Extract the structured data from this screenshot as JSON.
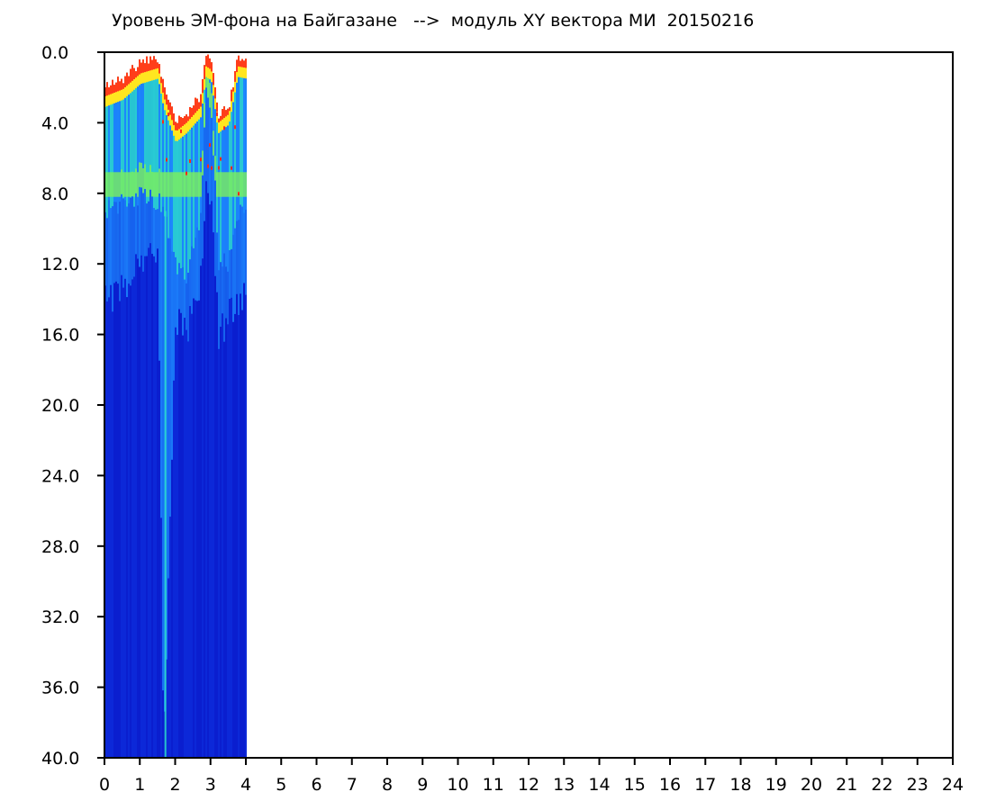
{
  "chart_data": {
    "type": "heatmap",
    "title": "Уровень ЭМ-фона на Байгазане   -->  модуль XY вектора МИ  20150216",
    "xlabel": "",
    "ylabel": "",
    "xlim": [
      0,
      24
    ],
    "ylim": [
      40,
      0
    ],
    "x_ticks": [
      "0",
      "1",
      "2",
      "3",
      "4",
      "5",
      "6",
      "7",
      "8",
      "9",
      "10",
      "11",
      "12",
      "13",
      "14",
      "15",
      "16",
      "17",
      "18",
      "19",
      "20",
      "21",
      "22",
      "23",
      "24"
    ],
    "y_ticks": [
      "0.0",
      "4.0",
      "8.0",
      "12.0",
      "16.0",
      "20.0",
      "24.0",
      "28.0",
      "32.0",
      "36.0",
      "40.0"
    ],
    "data_extent_hours": [
      0,
      4
    ],
    "colors": {
      "low": "#0a1ecf",
      "mid_low": "#1e8cff",
      "mid": "#2ee6c8",
      "mid_high": "#7df05a",
      "high": "#ffe620",
      "peak": "#ff2a1a"
    },
    "profile": [
      {
        "hour": 0.0,
        "top": 2.0,
        "hot_band_top": 2.2,
        "warm_band_bottom": 9.0,
        "bright_bottom": 14.0
      },
      {
        "hour": 0.5,
        "top": 1.5,
        "hot_band_top": 1.8,
        "warm_band_bottom": 8.5,
        "bright_bottom": 13.5
      },
      {
        "hour": 1.0,
        "top": 0.6,
        "hot_band_top": 0.9,
        "warm_band_bottom": 8.2,
        "bright_bottom": 12.0
      },
      {
        "hour": 1.5,
        "top": 0.4,
        "hot_band_top": 0.6,
        "warm_band_bottom": 8.4,
        "bright_bottom": 11.0
      },
      {
        "hour": 1.65,
        "top": 2.0,
        "hot_band_top": 2.2,
        "warm_band_bottom": 9.0,
        "bright_bottom": 40.0
      },
      {
        "hour": 2.0,
        "top": 4.0,
        "hot_band_top": 4.2,
        "warm_band_bottom": 12.0,
        "bright_bottom": 15.0
      },
      {
        "hour": 2.3,
        "top": 3.5,
        "hot_band_top": 3.7,
        "warm_band_bottom": 13.0,
        "bright_bottom": 16.0
      },
      {
        "hour": 2.7,
        "top": 2.5,
        "hot_band_top": 2.8,
        "warm_band_bottom": 9.0,
        "bright_bottom": 13.0
      },
      {
        "hour": 2.85,
        "top": 0.3,
        "hot_band_top": 0.5,
        "warm_band_bottom": 2.5,
        "bright_bottom": 8.0
      },
      {
        "hour": 3.0,
        "top": 0.5,
        "hot_band_top": 0.7,
        "warm_band_bottom": 3.0,
        "bright_bottom": 9.0
      },
      {
        "hour": 3.2,
        "top": 3.5,
        "hot_band_top": 3.7,
        "warm_band_bottom": 12.0,
        "bright_bottom": 16.0
      },
      {
        "hour": 3.5,
        "top": 3.0,
        "hot_band_top": 3.2,
        "warm_band_bottom": 12.0,
        "bright_bottom": 15.0
      },
      {
        "hour": 3.75,
        "top": 0.3,
        "hot_band_top": 0.5,
        "warm_band_bottom": 9.0,
        "bright_bottom": 14.0
      },
      {
        "hour": 4.0,
        "top": 0.4,
        "hot_band_top": 0.6,
        "warm_band_bottom": 9.0,
        "bright_bottom": 14.0
      }
    ]
  }
}
